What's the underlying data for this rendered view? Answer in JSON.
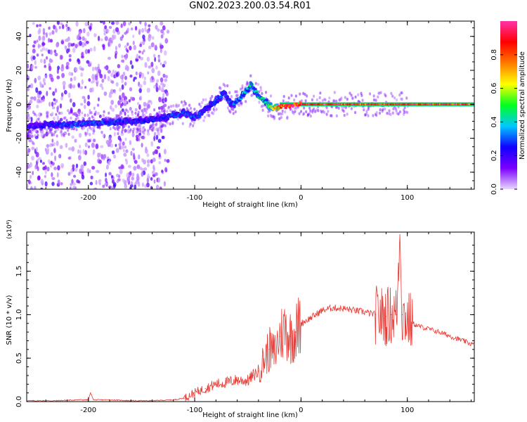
{
  "title": "GN02.2023.200.03.54.R01",
  "chart_data": [
    {
      "type": "heatmap",
      "xlabel": "Height of straight line (km)",
      "ylabel": "Frequency (Hz)",
      "xlim": [
        -258,
        163
      ],
      "ylim": [
        -50,
        49
      ],
      "x_ticks": [
        -200,
        -100,
        0,
        100
      ],
      "y_ticks": [
        -40,
        -20,
        0,
        20,
        40
      ],
      "colorbar": {
        "label": "Normalized spectral amplitude",
        "range": [
          0,
          1
        ],
        "ticks": [
          "0.0",
          "0.2",
          "0.4",
          "0.6",
          "0.8"
        ],
        "colors": [
          "#e8d8ff",
          "#7b00ff",
          "#1200ff",
          "#00c8ff",
          "#00ff20",
          "#ffff00",
          "#ff7a00",
          "#ff0000",
          "#ff33aa"
        ]
      },
      "ridge": {
        "x": [
          -258,
          -240,
          -220,
          -200,
          -180,
          -160,
          -140,
          -120,
          -110,
          -100,
          -90,
          -80,
          -72,
          -66,
          -60,
          -52,
          -46,
          -40,
          -35,
          -30,
          -25,
          -20,
          -10,
          0,
          20,
          60,
          100,
          163
        ],
        "frequency": [
          -13,
          -12,
          -12,
          -11,
          -11,
          -10,
          -9,
          -7,
          -5,
          -8,
          -3,
          2,
          7,
          0,
          2,
          8,
          11,
          4,
          2,
          -1,
          -2,
          -2,
          -1,
          0,
          0,
          0,
          0,
          0
        ],
        "amplitude": [
          0.2,
          0.25,
          0.3,
          0.32,
          0.3,
          0.28,
          0.26,
          0.3,
          0.32,
          0.3,
          0.28,
          0.3,
          0.35,
          0.32,
          0.35,
          0.4,
          0.45,
          0.45,
          0.5,
          0.6,
          0.75,
          0.85,
          0.9,
          0.95,
          0.95,
          0.92,
          0.95,
          0.95
        ]
      },
      "noise_region_x": [
        -258,
        -125
      ]
    },
    {
      "type": "line",
      "xlabel": "Height of straight line (km)",
      "ylabel": "SNR (10 * v/v)",
      "y_multiplier": "(x10⁴)",
      "xlim": [
        -258,
        163
      ],
      "ylim": [
        0,
        1.95
      ],
      "x_ticks": [
        -200,
        -100,
        0,
        100
      ],
      "y_ticks": [
        "0.0",
        "0.5",
        "1.0",
        "1.5"
      ],
      "color": "#e83a34",
      "series": [
        {
          "x": [
            -258,
            -230,
            -210,
            -200,
            -198,
            -195,
            -180,
            -160,
            -140,
            -120,
            -110,
            -100,
            -90,
            -80,
            -70,
            -60,
            -50,
            -45,
            -40,
            -30,
            -25,
            -20,
            -15,
            -10,
            -5,
            0,
            10,
            20,
            30,
            40,
            50,
            60,
            70,
            80,
            85,
            90,
            93,
            95,
            100,
            105,
            110,
            130,
            150,
            163
          ],
          "y": [
            0.01,
            0.01,
            0.02,
            0.02,
            0.1,
            0.02,
            0.02,
            0.01,
            0.01,
            0.02,
            0.04,
            0.1,
            0.15,
            0.2,
            0.22,
            0.25,
            0.24,
            0.3,
            0.35,
            0.6,
            0.55,
            0.75,
            0.85,
            0.75,
            0.8,
            0.9,
            0.97,
            1.05,
            1.08,
            1.07,
            1.05,
            1.03,
            1.0,
            0.98,
            1.0,
            1.0,
            1.92,
            1.0,
            0.95,
            0.9,
            0.87,
            0.8,
            0.71,
            0.65
          ]
        }
      ]
    }
  ]
}
